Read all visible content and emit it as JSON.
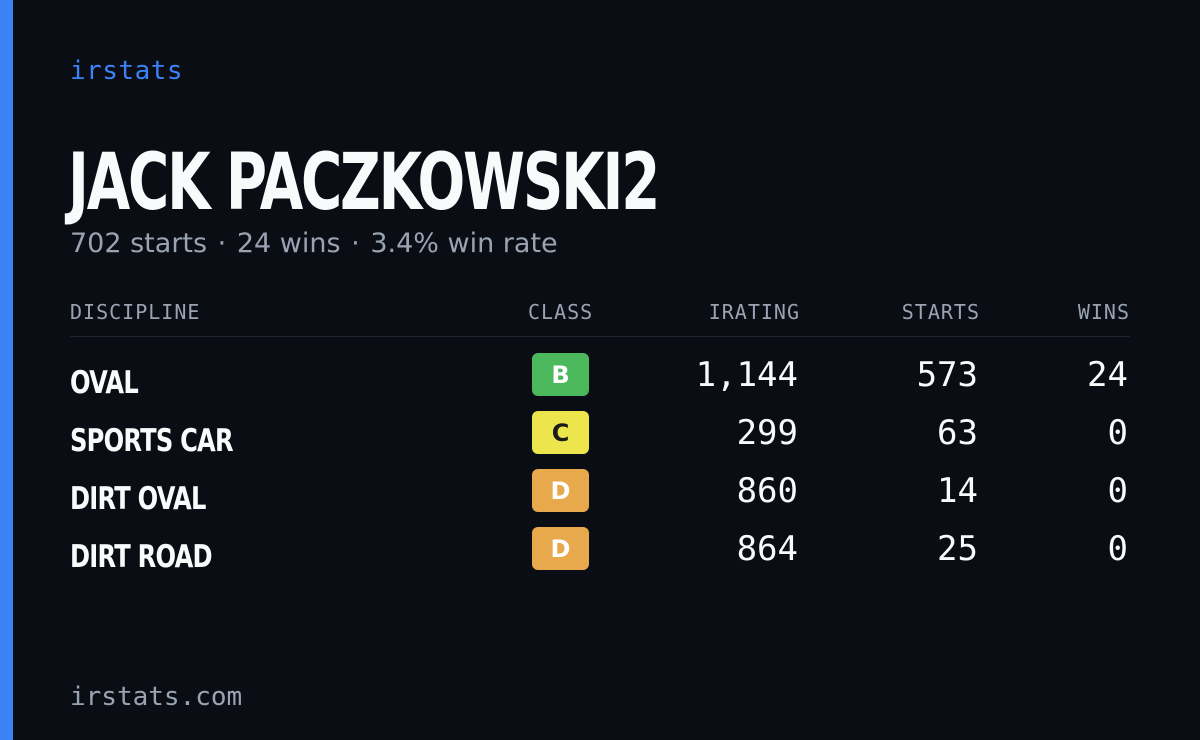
{
  "brand": "irstats",
  "driver": {
    "name": "JACK PACZKOWSKI2"
  },
  "summary": {
    "starts": "702 starts",
    "wins": "24 wins",
    "win_rate": "3.4% win rate",
    "separator": "·"
  },
  "table": {
    "headers": {
      "discipline": "DISCIPLINE",
      "class": "CLASS",
      "irating": "IRATING",
      "starts": "STARTS",
      "wins": "WINS"
    },
    "rows": [
      {
        "discipline": "OVAL",
        "class": "B",
        "class_color": "#4cb85c",
        "irating": "1,144",
        "starts": "573",
        "wins": "24"
      },
      {
        "discipline": "SPORTS CAR",
        "class": "C",
        "class_color": "#ece54b",
        "irating": "299",
        "starts": "63",
        "wins": "0"
      },
      {
        "discipline": "DIRT OVAL",
        "class": "D",
        "class_color": "#e8a94c",
        "irating": "860",
        "starts": "14",
        "wins": "0"
      },
      {
        "discipline": "DIRT ROAD",
        "class": "D",
        "class_color": "#e8a94c",
        "irating": "864",
        "starts": "25",
        "wins": "0"
      }
    ]
  },
  "footer": {
    "url": "irstats.com"
  },
  "colors": {
    "accent": "#3b82f6",
    "background": "#0a0d14"
  }
}
